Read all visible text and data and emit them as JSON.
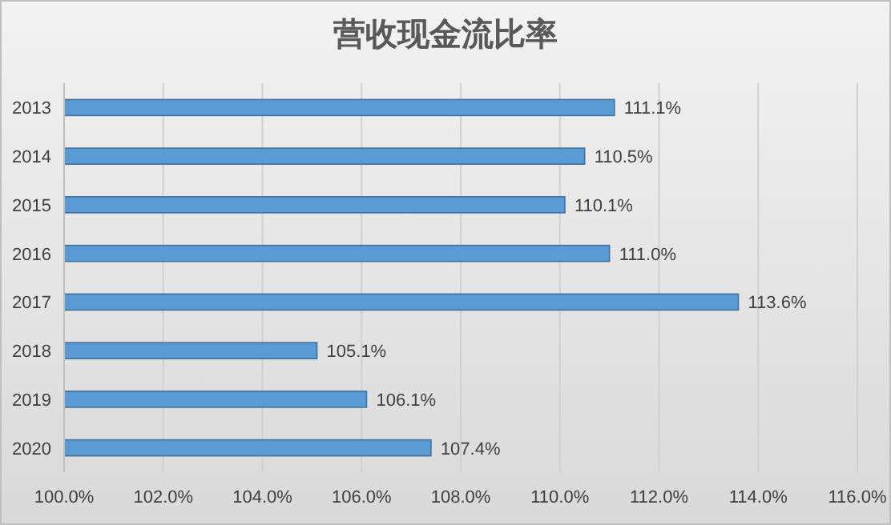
{
  "chart_data": {
    "type": "bar",
    "orientation": "horizontal",
    "title": "营收现金流比率",
    "categories": [
      "2013",
      "2014",
      "2015",
      "2016",
      "2017",
      "2018",
      "2019",
      "2020"
    ],
    "values": [
      111.1,
      110.5,
      110.1,
      111.0,
      113.6,
      105.1,
      106.1,
      107.4
    ],
    "value_labels": [
      "111.1%",
      "110.5%",
      "110.1%",
      "111.0%",
      "113.6%",
      "105.1%",
      "106.1%",
      "107.4%"
    ],
    "color": "#5b9bd5",
    "xlim": [
      100,
      116
    ],
    "xticks": [
      {
        "value": 100,
        "label": "100.0%"
      },
      {
        "value": 102,
        "label": "102.0%"
      },
      {
        "value": 104,
        "label": "104.0%"
      },
      {
        "value": 106,
        "label": "106.0%"
      },
      {
        "value": 108,
        "label": "108.0%"
      },
      {
        "value": 110,
        "label": "110.0%"
      },
      {
        "value": 112,
        "label": "112.0%"
      },
      {
        "value": 114,
        "label": "114.0%"
      },
      {
        "value": 116,
        "label": "116.0%"
      }
    ],
    "grid": "x"
  }
}
